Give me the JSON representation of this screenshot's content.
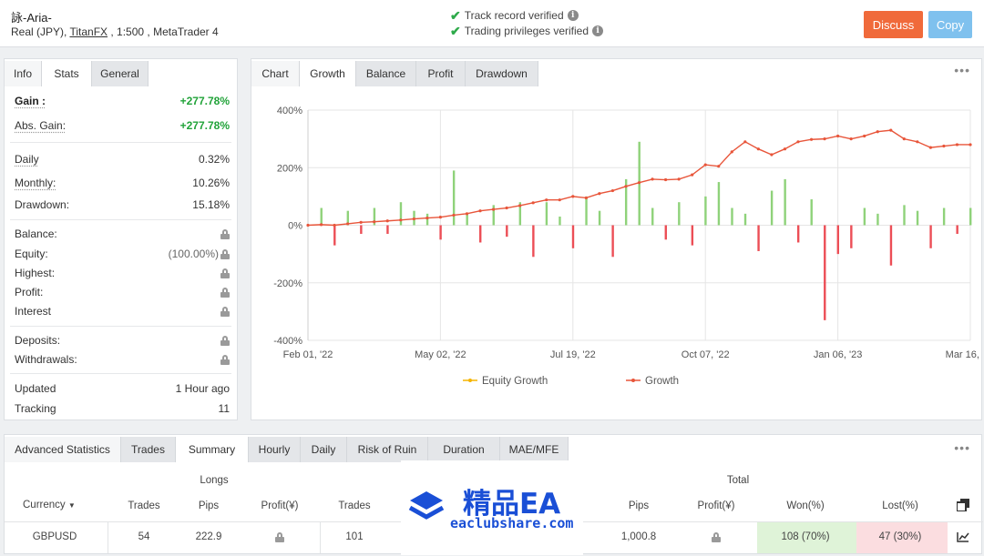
{
  "account": {
    "name": "詠-Aria-",
    "type_prefix": "Real (JPY), ",
    "broker": "TitanFX",
    "type_suffix": " , 1:500 , MetaTrader 4"
  },
  "verification": [
    {
      "label": "Track record verified"
    },
    {
      "label": "Trading privileges verified"
    }
  ],
  "actions": {
    "discuss": "Discuss",
    "copy": "Copy"
  },
  "colors": {
    "discuss": "#f06a3b",
    "copy": "#7fc1ee",
    "gain": "#22a33a",
    "growth_line": "#e8553a",
    "bar_positive": "#8fd27a",
    "bar_negative": "#ec4e56",
    "equity_line": "#f5b400"
  },
  "info_tabs": [
    "Info",
    "Stats",
    "General"
  ],
  "stats": {
    "gain": {
      "label": "Gain :",
      "value": "+277.78%"
    },
    "abs_gain": {
      "label": "Abs. Gain:",
      "value": "+277.78%"
    },
    "daily": {
      "label": "Daily",
      "value": "0.32%"
    },
    "monthly": {
      "label": "Monthly:",
      "value": "10.26%"
    },
    "drawdown": {
      "label": "Drawdown:",
      "value": "15.18%"
    },
    "balance": {
      "label": "Balance:"
    },
    "equity": {
      "label": "Equity:",
      "value": "(100.00%)"
    },
    "highest": {
      "label": "Highest:"
    },
    "profit": {
      "label": "Profit:"
    },
    "interest": {
      "label": "Interest"
    },
    "deposits": {
      "label": "Deposits:"
    },
    "withdrawals": {
      "label": "Withdrawals:"
    },
    "updated": {
      "label": "Updated",
      "value": "1 Hour ago"
    },
    "tracking": {
      "label": "Tracking",
      "value": "11"
    }
  },
  "chart_tabs": [
    "Chart",
    "Growth",
    "Balance",
    "Profit",
    "Drawdown"
  ],
  "chart_data": {
    "type": "line",
    "y_ticks": [
      "400%",
      "200%",
      "0%",
      "-200%",
      "-400%"
    ],
    "ylim": [
      -400,
      400
    ],
    "x_ticks": [
      "Feb 01, '22",
      "May 02, '22",
      "Jul 19, '22",
      "Oct 07, '22",
      "Jan 06, '23",
      "Mar 16, '23"
    ],
    "legend": [
      "Equity Growth",
      "Growth"
    ],
    "legend_position": "bottom",
    "grid": true,
    "growth_x": [
      0,
      2,
      4,
      6,
      8,
      10,
      12,
      14,
      16,
      18,
      20,
      22,
      24,
      26,
      28,
      30,
      32,
      34,
      36,
      38,
      40,
      42,
      44,
      46,
      48,
      50,
      52,
      54,
      56,
      58,
      60,
      62,
      64,
      66,
      68,
      70,
      72,
      74,
      76,
      78,
      80,
      82,
      84,
      86,
      88,
      90,
      92,
      94,
      96,
      98,
      100
    ],
    "growth_y": [
      0,
      2,
      0,
      5,
      10,
      12,
      15,
      18,
      22,
      25,
      28,
      35,
      40,
      50,
      55,
      60,
      68,
      78,
      88,
      88,
      100,
      95,
      110,
      120,
      135,
      148,
      160,
      158,
      160,
      175,
      210,
      205,
      255,
      290,
      265,
      245,
      265,
      290,
      298,
      300,
      310,
      300,
      310,
      325,
      330,
      300,
      290,
      270,
      275,
      280,
      280
    ],
    "bars_x": [
      2,
      4,
      6,
      8,
      10,
      12,
      14,
      16,
      18,
      20,
      22,
      24,
      26,
      28,
      30,
      32,
      34,
      36,
      38,
      40,
      42,
      44,
      46,
      48,
      50,
      52,
      54,
      56,
      58,
      60,
      62,
      64,
      66,
      68,
      70,
      72,
      74,
      76,
      78,
      80,
      82,
      84,
      86,
      88,
      90,
      92,
      94,
      96,
      98,
      100
    ],
    "bars_y": [
      60,
      -70,
      50,
      -30,
      60,
      -30,
      80,
      50,
      40,
      -50,
      190,
      40,
      -60,
      70,
      -40,
      80,
      -110,
      80,
      30,
      -80,
      100,
      50,
      -110,
      160,
      290,
      60,
      -50,
      80,
      -70,
      100,
      150,
      60,
      40,
      -90,
      120,
      160,
      -60,
      90,
      -330,
      -100,
      -80,
      60,
      40,
      -140,
      70,
      50,
      -80,
      60,
      -30,
      60
    ]
  },
  "adv": {
    "tabs": [
      "Advanced Statistics",
      "Trades",
      "Summary",
      "Hourly",
      "Daily",
      "Risk of Ruin",
      "Duration",
      "MAE/MFE"
    ],
    "group_longs": "Longs",
    "group_total": "Total",
    "headers": {
      "currency": "Currency",
      "trades": "Trades",
      "pips": "Pips",
      "profit": "Profit(¥)",
      "trades2": "Trades",
      "pips2": "Pips",
      "profit2": "Profit(¥)",
      "won": "Won(%)",
      "lost": "Lost(%)"
    },
    "row": {
      "currency": "GBPUSD",
      "trades": "54",
      "pips": "222.9",
      "trades2": "101",
      "pips2": "1,000.8",
      "won": "108 (70%)",
      "lost": "47 (30%)"
    }
  },
  "watermark": {
    "title": "精品EA",
    "url": "eaclubshare.com"
  }
}
